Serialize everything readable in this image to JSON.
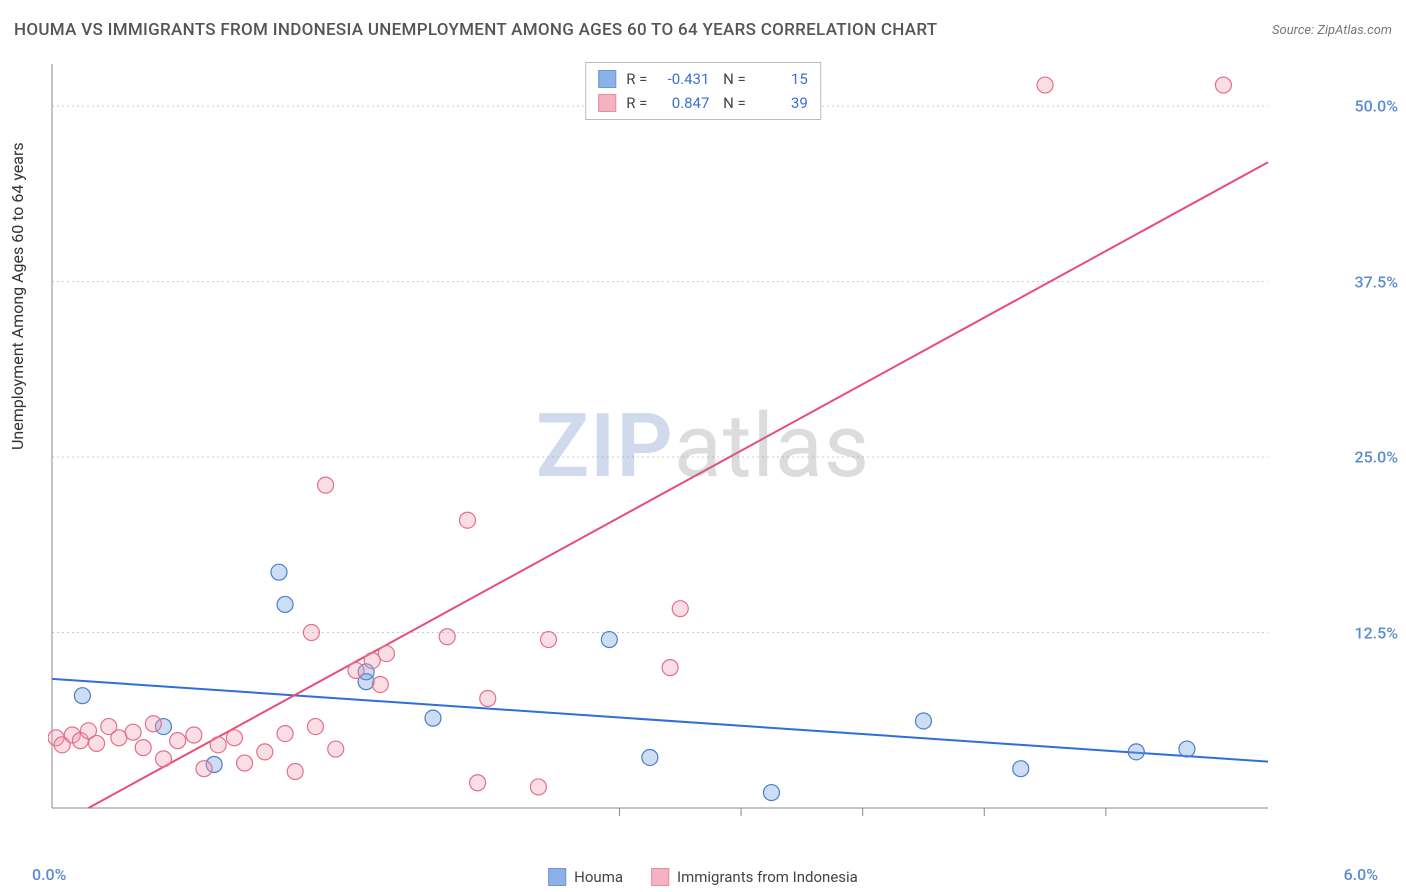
{
  "title": "HOUMA VS IMMIGRANTS FROM INDONESIA UNEMPLOYMENT AMONG AGES 60 TO 64 YEARS CORRELATION CHART",
  "source": "Source: ZipAtlas.com",
  "ylabel": "Unemployment Among Ages 60 to 64 years",
  "watermark": {
    "z": "ZIP",
    "rest": "atlas"
  },
  "chart": {
    "type": "scatter",
    "background_color": "#ffffff",
    "grid_color": "#cccccc",
    "axis_color": "#888888",
    "xlim": [
      0.0,
      6.0
    ],
    "ylim": [
      0.0,
      53.0
    ],
    "xticks": [
      0.0,
      6.0
    ],
    "xtick_marks_only": [
      2.8,
      3.4,
      4.0,
      4.6,
      5.2
    ],
    "yticks": [
      12.5,
      25.0,
      37.5,
      50.0
    ],
    "xtick_fmt": "pct1",
    "ytick_fmt": "pct1",
    "marker_radius": 8,
    "marker_fill_opacity": 0.35,
    "marker_stroke_width": 1.2,
    "line_width": 2,
    "series": [
      {
        "name": "Houma",
        "color": "#6fa0e0",
        "stroke": "#4a7fc7",
        "line_color": "#2f6fd6",
        "R": "-0.431",
        "N": "15",
        "trend": {
          "x1": 0.0,
          "y1": 9.2,
          "x2": 6.0,
          "y2": 3.3
        },
        "points": [
          [
            0.15,
            8.0
          ],
          [
            0.55,
            5.8
          ],
          [
            0.8,
            3.1
          ],
          [
            1.12,
            16.8
          ],
          [
            1.15,
            14.5
          ],
          [
            1.55,
            9.0
          ],
          [
            1.55,
            9.7
          ],
          [
            1.88,
            6.4
          ],
          [
            2.75,
            12.0
          ],
          [
            2.95,
            3.6
          ],
          [
            3.55,
            1.1
          ],
          [
            4.3,
            6.2
          ],
          [
            4.78,
            2.8
          ],
          [
            5.35,
            4.0
          ],
          [
            5.6,
            4.2
          ]
        ]
      },
      {
        "name": "Immigrants from Indonesia",
        "color": "#f2a0b5",
        "stroke": "#e36f8d",
        "line_color": "#e84c7a",
        "R": "0.847",
        "N": "39",
        "trend": {
          "x1": 0.18,
          "y1": 0.0,
          "x2": 6.0,
          "y2": 46.0
        },
        "points": [
          [
            0.02,
            5.0
          ],
          [
            0.05,
            4.5
          ],
          [
            0.1,
            5.2
          ],
          [
            0.14,
            4.8
          ],
          [
            0.18,
            5.5
          ],
          [
            0.22,
            4.6
          ],
          [
            0.28,
            5.8
          ],
          [
            0.33,
            5.0
          ],
          [
            0.4,
            5.4
          ],
          [
            0.45,
            4.3
          ],
          [
            0.5,
            6.0
          ],
          [
            0.55,
            3.5
          ],
          [
            0.62,
            4.8
          ],
          [
            0.7,
            5.2
          ],
          [
            0.75,
            2.8
          ],
          [
            0.82,
            4.5
          ],
          [
            0.9,
            5.0
          ],
          [
            0.95,
            3.2
          ],
          [
            1.05,
            4.0
          ],
          [
            1.15,
            5.3
          ],
          [
            1.2,
            2.6
          ],
          [
            1.28,
            12.5
          ],
          [
            1.3,
            5.8
          ],
          [
            1.35,
            23.0
          ],
          [
            1.4,
            4.2
          ],
          [
            1.5,
            9.8
          ],
          [
            1.58,
            10.5
          ],
          [
            1.62,
            8.8
          ],
          [
            1.65,
            11.0
          ],
          [
            1.95,
            12.2
          ],
          [
            2.05,
            20.5
          ],
          [
            2.1,
            1.8
          ],
          [
            2.15,
            7.8
          ],
          [
            2.4,
            1.5
          ],
          [
            2.45,
            12.0
          ],
          [
            3.05,
            10.0
          ],
          [
            3.1,
            14.2
          ],
          [
            4.9,
            51.5
          ],
          [
            5.78,
            51.5
          ]
        ]
      }
    ]
  },
  "legend": {
    "items": [
      {
        "label": "Houma",
        "color": "#6fa0e0",
        "stroke": "#4a7fc7"
      },
      {
        "label": "Immigrants from Indonesia",
        "color": "#f2a0b5",
        "stroke": "#e36f8d"
      }
    ]
  },
  "colors": {
    "tick_label": "#5b8bd0",
    "stat_value": "#3b6fd0"
  }
}
